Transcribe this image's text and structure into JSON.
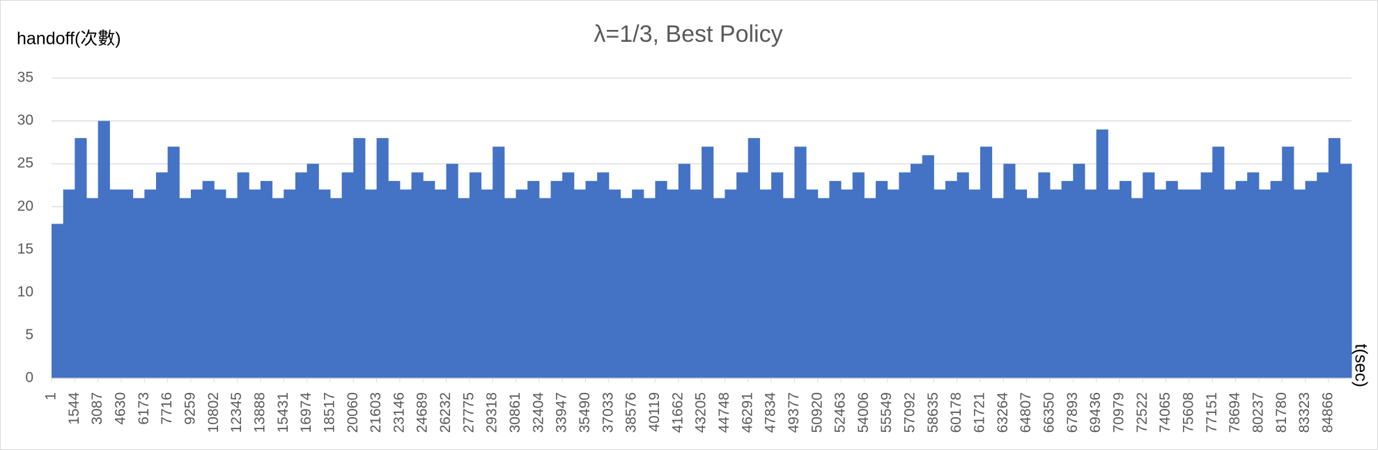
{
  "chart_data": {
    "type": "bar",
    "title": "λ=1/3, Best Policy",
    "y_label": "handoff(次數)",
    "x_label": "t(sec)",
    "color": "#4472c4",
    "grid": true,
    "xlim": [
      1,
      86400
    ],
    "ylim": [
      0,
      35
    ],
    "yticks": [
      0,
      5,
      10,
      15,
      20,
      25,
      30,
      35
    ],
    "xticks": [
      1,
      1544,
      3087,
      4630,
      6173,
      7716,
      9259,
      10802,
      12345,
      13888,
      15431,
      16974,
      18517,
      20060,
      21603,
      23146,
      24689,
      26232,
      27775,
      29318,
      30861,
      32404,
      33947,
      35490,
      37033,
      38576,
      40119,
      41662,
      43205,
      44748,
      46291,
      47834,
      49377,
      50920,
      52463,
      54006,
      55549,
      57092,
      58635,
      60178,
      61721,
      63264,
      64807,
      66350,
      67893,
      69436,
      70979,
      72522,
      74065,
      75608,
      77151,
      78694,
      80237,
      81780,
      83323,
      84866
    ],
    "x": [
      1,
      773,
      1544,
      2316,
      3087,
      3859,
      4630,
      5402,
      6173,
      6945,
      7716,
      8488,
      9259,
      10031,
      10802,
      11574,
      12345,
      13117,
      13888,
      14660,
      15431,
      16203,
      16974,
      17746,
      18517,
      19289,
      20060,
      20832,
      21603,
      22375,
      23146,
      23918,
      24689,
      25461,
      26232,
      27004,
      27775,
      28547,
      29318,
      30090,
      30861,
      31633,
      32404,
      33176,
      33947,
      34719,
      35490,
      36262,
      37033,
      37805,
      38576,
      39348,
      40119,
      40891,
      41662,
      42434,
      43205,
      43977,
      44748,
      45520,
      46291,
      47063,
      47834,
      48606,
      49377,
      50149,
      50920,
      51692,
      52463,
      53235,
      54006,
      54778,
      55549,
      56321,
      57092,
      57864,
      58635,
      59407,
      60178,
      60950,
      61721,
      62493,
      63264,
      64036,
      64807,
      65579,
      66350,
      67122,
      67893,
      68665,
      69436,
      70208,
      70979,
      71751,
      72522,
      73294,
      74065,
      74837,
      75608,
      76380,
      77151,
      77923,
      78694,
      79466,
      80237,
      81009,
      81780,
      82552,
      83323,
      84095,
      84866,
      85638
    ],
    "values": [
      18,
      22,
      28,
      21,
      30,
      22,
      22,
      21,
      22,
      24,
      27,
      21,
      22,
      23,
      22,
      21,
      24,
      22,
      23,
      21,
      22,
      24,
      25,
      22,
      21,
      24,
      28,
      22,
      28,
      23,
      22,
      24,
      23,
      22,
      25,
      21,
      24,
      22,
      27,
      21,
      22,
      23,
      21,
      23,
      24,
      22,
      23,
      24,
      22,
      21,
      22,
      21,
      23,
      22,
      25,
      22,
      27,
      21,
      22,
      24,
      28,
      22,
      24,
      21,
      27,
      22,
      21,
      23,
      22,
      24,
      21,
      23,
      22,
      24,
      25,
      26,
      22,
      23,
      24,
      22,
      27,
      21,
      25,
      22,
      21,
      24,
      22,
      23,
      25,
      22,
      29,
      22,
      23,
      21,
      24,
      22,
      23,
      22,
      22,
      24,
      27,
      22,
      23,
      24,
      22,
      23,
      27,
      22,
      23,
      24,
      28,
      25
    ]
  }
}
